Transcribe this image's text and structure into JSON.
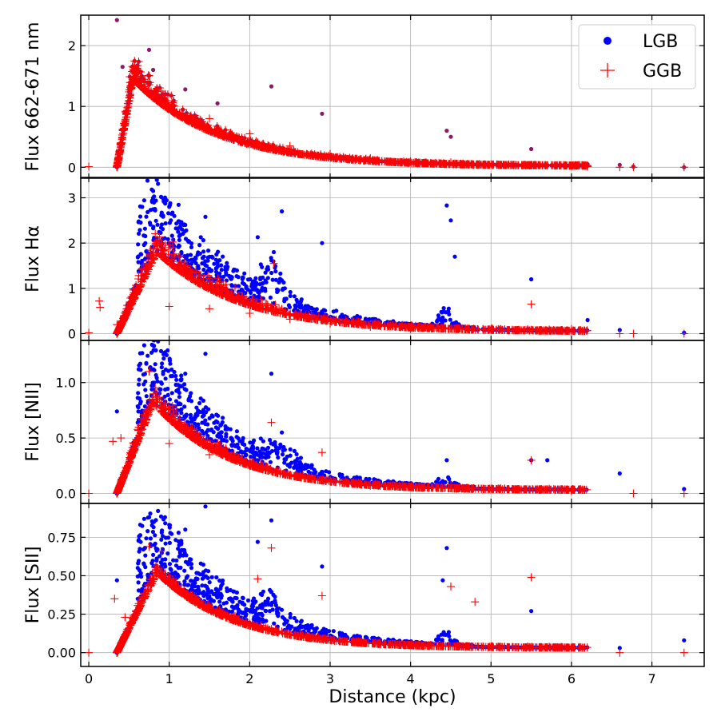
{
  "chart_data": {
    "type": "scatter",
    "xlabel": "Distance (kpc)",
    "xlim": [
      -0.1,
      7.65
    ],
    "xticks": [
      0,
      1,
      2,
      3,
      4,
      5,
      6,
      7
    ],
    "grid": true,
    "legend": {
      "location": "top-right of first panel",
      "entries": [
        {
          "name": "LGB",
          "marker": "dot",
          "color": "#0000ff"
        },
        {
          "name": "GGB",
          "marker": "plus",
          "color": "#ff0000"
        }
      ]
    },
    "colors": {
      "LGB": "#0000ff",
      "GGB": "#ff0000",
      "overlap": "#8b1a6b"
    },
    "panels": [
      {
        "name": "flux-662-671",
        "ylabel": "Flux 662-671 nm",
        "ylim": [
          -0.18,
          2.5
        ],
        "yticks": [
          0,
          1,
          2
        ],
        "ytick_labels": [
          "0",
          "1",
          "2"
        ],
        "peak_x": 0.55,
        "peak_y": 1.45,
        "decay": 0.55,
        "tail": 0.02,
        "noise": 0.1,
        "lgb_excess": 0.0,
        "bump_x": 4.5,
        "bump_y": 0.35,
        "series": [
          {
            "name": "LGB",
            "points": [
              [
                0.35,
                2.42
              ],
              [
                0.42,
                1.65
              ],
              [
                0.75,
                1.93
              ],
              [
                0.8,
                1.6
              ],
              [
                1.2,
                1.28
              ],
              [
                1.6,
                1.05
              ],
              [
                2.27,
                1.33
              ],
              [
                2.9,
                0.88
              ],
              [
                4.45,
                0.6
              ],
              [
                4.5,
                0.5
              ],
              [
                5.5,
                0.3
              ],
              [
                6.0,
                0.02
              ],
              [
                6.2,
                0.05
              ],
              [
                6.6,
                0.04
              ],
              [
                6.77,
                0.01
              ],
              [
                7.4,
                0.0
              ]
            ]
          },
          {
            "name": "GGB",
            "points": [
              [
                0.0,
                0.01
              ],
              [
                0.6,
                1.5
              ],
              [
                0.7,
                1.4
              ],
              [
                0.9,
                1.25
              ],
              [
                1.0,
                1.0
              ],
              [
                1.5,
                0.8
              ],
              [
                2.0,
                0.55
              ],
              [
                2.5,
                0.35
              ],
              [
                3.0,
                0.22
              ],
              [
                3.5,
                0.15
              ],
              [
                4.0,
                0.1
              ],
              [
                4.5,
                0.08
              ],
              [
                5.0,
                0.05
              ],
              [
                5.5,
                0.04
              ],
              [
                6.0,
                0.02
              ],
              [
                6.2,
                0.01
              ],
              [
                6.6,
                0.0
              ],
              [
                6.77,
                0.0
              ],
              [
                7.4,
                0.0
              ]
            ]
          }
        ]
      },
      {
        "name": "flux-halpha",
        "ylabel": "Flux Hα",
        "ylim": [
          -0.15,
          3.45
        ],
        "yticks": [
          0,
          1,
          2,
          3
        ],
        "ytick_labels": [
          "0",
          "1",
          "2",
          "3"
        ],
        "peak_x": 0.85,
        "peak_y": 1.8,
        "decay": 0.55,
        "tail": 0.05,
        "noise": 0.12,
        "lgb_excess": 0.6,
        "bump_x": 2.3,
        "bump_y": 1.0,
        "series": [
          {
            "name": "LGB",
            "points": [
              [
                0.73,
                3.38
              ],
              [
                0.8,
                3.15
              ],
              [
                1.0,
                2.8
              ],
              [
                1.2,
                2.4
              ],
              [
                1.45,
                2.58
              ],
              [
                2.1,
                2.13
              ],
              [
                2.4,
                2.7
              ],
              [
                2.3,
                1.8
              ],
              [
                2.9,
                2.0
              ],
              [
                4.45,
                2.83
              ],
              [
                4.5,
                2.5
              ],
              [
                4.55,
                1.7
              ],
              [
                5.5,
                1.2
              ],
              [
                6.2,
                0.3
              ],
              [
                6.6,
                0.08
              ],
              [
                7.4,
                0.02
              ]
            ]
          },
          {
            "name": "GGB",
            "points": [
              [
                0.0,
                0.02
              ],
              [
                0.13,
                0.72
              ],
              [
                0.14,
                0.58
              ],
              [
                0.35,
                0.2
              ],
              [
                0.9,
                2.0
              ],
              [
                0.95,
                1.95
              ],
              [
                1.0,
                0.6
              ],
              [
                1.5,
                0.55
              ],
              [
                2.0,
                0.45
              ],
              [
                2.3,
                1.55
              ],
              [
                2.5,
                0.32
              ],
              [
                3.0,
                0.22
              ],
              [
                3.5,
                0.15
              ],
              [
                4.0,
                0.1
              ],
              [
                5.5,
                0.65
              ],
              [
                6.0,
                0.1
              ],
              [
                6.6,
                0.0
              ],
              [
                6.77,
                0.0
              ],
              [
                7.4,
                0.0
              ]
            ]
          }
        ]
      },
      {
        "name": "flux-nii",
        "ylabel": "Flux [NII]",
        "ylim": [
          -0.09,
          1.38
        ],
        "yticks": [
          0,
          0.5,
          1.0
        ],
        "ytick_labels": [
          "0.0",
          "0.5",
          "1.0"
        ],
        "peak_x": 0.8,
        "peak_y": 0.82,
        "decay": 0.5,
        "tail": 0.03,
        "noise": 0.08,
        "lgb_excess": 0.25,
        "bump_x": 2.4,
        "bump_y": 0.25,
        "series": [
          {
            "name": "LGB",
            "points": [
              [
                0.35,
                0.74
              ],
              [
                0.78,
                1.27
              ],
              [
                0.98,
                1.29
              ],
              [
                1.2,
                1.08
              ],
              [
                1.45,
                1.26
              ],
              [
                2.27,
                1.08
              ],
              [
                2.4,
                0.55
              ],
              [
                4.45,
                0.3
              ],
              [
                5.5,
                0.3
              ],
              [
                5.7,
                0.3
              ],
              [
                6.6,
                0.18
              ],
              [
                7.4,
                0.04
              ]
            ]
          },
          {
            "name": "GGB",
            "points": [
              [
                0.0,
                0.0
              ],
              [
                0.75,
                1.1
              ],
              [
                0.3,
                0.47
              ],
              [
                0.4,
                0.5
              ],
              [
                1.0,
                0.45
              ],
              [
                1.5,
                0.35
              ],
              [
                2.0,
                0.25
              ],
              [
                2.27,
                0.64
              ],
              [
                2.9,
                0.37
              ],
              [
                3.5,
                0.07
              ],
              [
                4.5,
                0.08
              ],
              [
                5.5,
                0.3
              ],
              [
                6.0,
                0.02
              ],
              [
                6.77,
                0.0
              ],
              [
                7.4,
                0.0
              ]
            ]
          }
        ]
      },
      {
        "name": "flux-sii",
        "ylabel": "Flux [SII]",
        "ylim": [
          -0.09,
          0.97
        ],
        "yticks": [
          0,
          0.25,
          0.5,
          0.75
        ],
        "ytick_labels": [
          "0.00",
          "0.25",
          "0.50",
          "0.75"
        ],
        "peak_x": 0.85,
        "peak_y": 0.52,
        "decay": 0.5,
        "tail": 0.03,
        "noise": 0.05,
        "lgb_excess": 0.18,
        "bump_x": 2.3,
        "bump_y": 0.2,
        "series": [
          {
            "name": "LGB",
            "points": [
              [
                0.35,
                0.47
              ],
              [
                0.75,
                0.88
              ],
              [
                1.0,
                0.83
              ],
              [
                1.2,
                0.8
              ],
              [
                1.45,
                0.95
              ],
              [
                2.27,
                0.86
              ],
              [
                2.1,
                0.72
              ],
              [
                2.9,
                0.56
              ],
              [
                4.45,
                0.68
              ],
              [
                4.4,
                0.47
              ],
              [
                5.5,
                0.27
              ],
              [
                6.6,
                0.03
              ],
              [
                7.4,
                0.08
              ]
            ]
          },
          {
            "name": "GGB",
            "points": [
              [
                0.0,
                0.0
              ],
              [
                0.32,
                0.35
              ],
              [
                0.45,
                0.23
              ],
              [
                0.75,
                0.69
              ],
              [
                0.9,
                0.66
              ],
              [
                2.27,
                0.68
              ],
              [
                2.1,
                0.48
              ],
              [
                2.9,
                0.37
              ],
              [
                4.5,
                0.43
              ],
              [
                4.8,
                0.33
              ],
              [
                5.5,
                0.49
              ],
              [
                6.6,
                0.0
              ],
              [
                7.4,
                0.0
              ]
            ]
          }
        ]
      }
    ]
  }
}
